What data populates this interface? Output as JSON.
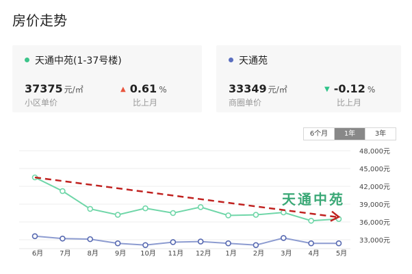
{
  "page": {
    "title": "房价走势"
  },
  "cards": [
    {
      "name": "天通中苑(1-37号楼)",
      "dot_color": "#3cc48a",
      "price": "37375",
      "unit": "元/㎡",
      "price_label": "小区单价",
      "change": "0.61",
      "change_unit": "%",
      "change_dir": "up",
      "change_color": "#e8553e",
      "change_label": "比上月"
    },
    {
      "name": "天通苑",
      "dot_color": "#5b6fbf",
      "price": "33349",
      "unit": "元/㎡",
      "price_label": "商圈单价",
      "change": "-0.12",
      "change_unit": "%",
      "change_dir": "down",
      "change_color": "#2ec389",
      "change_label": "比上月"
    }
  ],
  "range_toggle": {
    "options": [
      "6个月",
      "1年",
      "3年"
    ],
    "selected": "1年"
  },
  "annotation": {
    "text": "天通中苑",
    "color": "#3aa876",
    "arrow_color": "#c0211f"
  },
  "chart_data": {
    "type": "line",
    "categories": [
      "6月",
      "7月",
      "8月",
      "9月",
      "10月",
      "11月",
      "12月",
      "1月",
      "2月",
      "3月",
      "4月",
      "5月"
    ],
    "y_ticks": [
      33000,
      36000,
      39000,
      42000,
      45000,
      48000
    ],
    "y_tick_labels": [
      "33,000元",
      "36,000元",
      "39,000元",
      "42,000元",
      "45,000元",
      "48,000元"
    ],
    "ylim": [
      31500,
      48000
    ],
    "grid": true,
    "series": [
      {
        "name": "天通中苑(1-37号楼)",
        "color": "#6fd6a8",
        "values": [
          43500,
          41200,
          38200,
          37200,
          38300,
          37500,
          38500,
          37100,
          37200,
          37600,
          36200,
          36500
        ]
      },
      {
        "name": "天通苑",
        "color": "#8c9bd0",
        "values": [
          33600,
          33200,
          33100,
          32400,
          32100,
          32600,
          32700,
          32400,
          32100,
          33300,
          32400,
          32400
        ]
      }
    ],
    "trend_arrow": {
      "from_index": 0,
      "from_value": 43500,
      "to_index": 11,
      "to_value": 36500
    }
  }
}
